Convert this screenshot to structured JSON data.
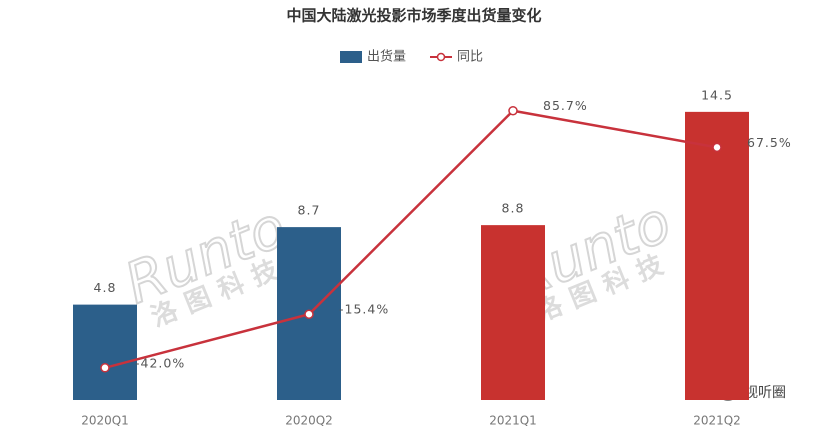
{
  "chart_data": {
    "type": "bar-line",
    "title": "中国大陆激光投影市场季度出货量变化",
    "categories": [
      "2020Q1",
      "2020Q2",
      "2021Q1",
      "2021Q2"
    ],
    "series": [
      {
        "name": "出货量",
        "type": "bar",
        "color": "#2c5f8a",
        "colors": [
          "#2c5f8a",
          "#2c5f8a",
          "#c8322f",
          "#c8322f"
        ],
        "values": [
          4.8,
          8.7,
          8.8,
          14.5
        ]
      },
      {
        "name": "同比",
        "type": "line",
        "axis": "y2",
        "color": "#c8323c",
        "values": [
          -42.0,
          -15.4,
          85.7,
          67.5
        ],
        "value_labels": [
          "-42.0%",
          "-15.4%",
          "85.7%",
          "67.5%"
        ]
      }
    ],
    "ylim": [
      0,
      15.6
    ],
    "y2lim": [
      -58,
      96
    ],
    "legend": "top",
    "watermark": "Runto",
    "watermark_sub": "洛图科技",
    "badge": "视听圈"
  }
}
